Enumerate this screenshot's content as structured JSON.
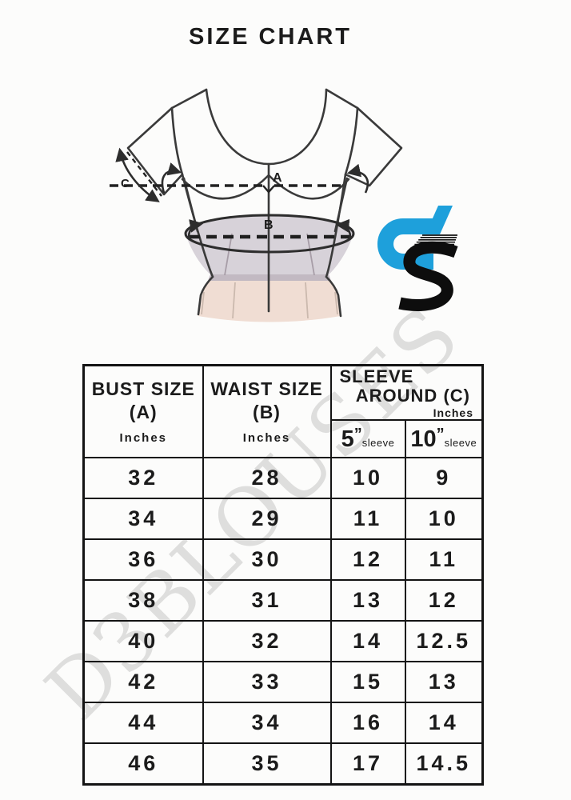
{
  "title": "SIZE CHART",
  "watermark": "D3BLOUSES",
  "logo": {
    "name": "D3 brand logo",
    "blue": "#1EA0DB",
    "black": "#0d0d0d"
  },
  "diagram": {
    "bust_label": "A",
    "waist_label": "B",
    "sleeve_label": "C"
  },
  "table": {
    "headers": {
      "bust": {
        "line1": "BUST SIZE",
        "line2": "(A)",
        "unit": "Inches"
      },
      "waist": {
        "line1": "WAIST SIZE",
        "line2": "(B)",
        "unit": "Inches"
      },
      "sleeve": {
        "line1": "SLEEVE",
        "line2": "AROUND",
        "label": "(C)",
        "unit": "Inches",
        "sub": [
          {
            "num": "5",
            "prime": "”",
            "word": "sleeve"
          },
          {
            "num": "10",
            "prime": "”",
            "word": "sleeve"
          }
        ]
      }
    },
    "rows": [
      {
        "bust": "32",
        "waist": "28",
        "sleeve5": "10",
        "sleeve10": "9"
      },
      {
        "bust": "34",
        "waist": "29",
        "sleeve5": "11",
        "sleeve10": "10"
      },
      {
        "bust": "36",
        "waist": "30",
        "sleeve5": "12",
        "sleeve10": "11"
      },
      {
        "bust": "38",
        "waist": "31",
        "sleeve5": "13",
        "sleeve10": "12"
      },
      {
        "bust": "40",
        "waist": "32",
        "sleeve5": "14",
        "sleeve10": "12.5"
      },
      {
        "bust": "42",
        "waist": "33",
        "sleeve5": "15",
        "sleeve10": "13"
      },
      {
        "bust": "44",
        "waist": "34",
        "sleeve5": "16",
        "sleeve10": "14"
      },
      {
        "bust": "46",
        "waist": "35",
        "sleeve5": "17",
        "sleeve10": "14.5"
      }
    ]
  },
  "chart_data": {
    "type": "table",
    "title": "SIZE CHART",
    "columns": [
      "Bust size (A) inches",
      "Waist size (B) inches",
      "Sleeve around (C) inches - 5\" sleeve",
      "Sleeve around (C) inches - 10\" sleeve"
    ],
    "rows": [
      [
        32,
        28,
        10,
        9
      ],
      [
        34,
        29,
        11,
        10
      ],
      [
        36,
        30,
        12,
        11
      ],
      [
        38,
        31,
        13,
        12
      ],
      [
        40,
        32,
        14,
        12.5
      ],
      [
        42,
        33,
        15,
        13
      ],
      [
        44,
        34,
        16,
        14
      ],
      [
        46,
        35,
        17,
        14.5
      ]
    ]
  }
}
